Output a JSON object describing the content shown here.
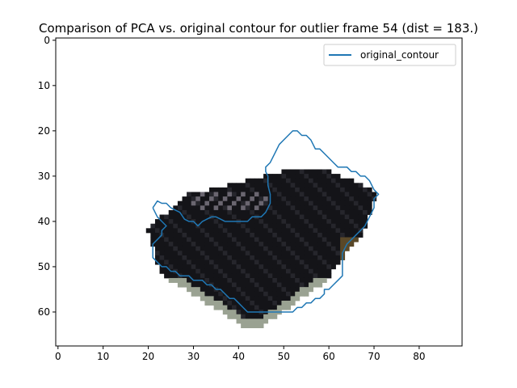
{
  "chart_data": {
    "type": "line",
    "title": "Comparison of PCA vs. original contour for outlier frame 54 (dist = 183.)",
    "xlabel": "",
    "ylabel": "",
    "xlim": [
      -0.5,
      89.5
    ],
    "ylim": [
      67.5,
      -0.5
    ],
    "y_inverted": true,
    "grid": false,
    "legend": {
      "placement": "top-right"
    },
    "x_ticks": [
      0,
      10,
      20,
      30,
      40,
      50,
      60,
      70,
      80
    ],
    "y_ticks": [
      0,
      10,
      20,
      30,
      40,
      50,
      60
    ],
    "background_image": {
      "description_kind": "pixelated image of a dark object",
      "colors": {
        "dark": "#141418",
        "mid": "#26262c",
        "highlight": "#6a6670",
        "rim": "#9aa292",
        "brown": "#5a4828"
      }
    },
    "series": [
      {
        "name": "original_contour",
        "color": "#1f77b4",
        "points": [
          [
            21,
            37
          ],
          [
            22,
            35.5
          ],
          [
            23,
            36
          ],
          [
            24,
            36
          ],
          [
            25,
            37
          ],
          [
            26,
            37.5
          ],
          [
            27,
            38
          ],
          [
            28,
            39.5
          ],
          [
            29,
            40
          ],
          [
            30,
            40
          ],
          [
            31,
            41
          ],
          [
            32,
            40
          ],
          [
            33,
            39.5
          ],
          [
            34,
            39
          ],
          [
            35,
            39
          ],
          [
            36,
            39.5
          ],
          [
            37,
            40
          ],
          [
            38,
            40
          ],
          [
            39,
            40
          ],
          [
            40,
            40
          ],
          [
            41,
            40
          ],
          [
            42,
            40
          ],
          [
            43,
            39
          ],
          [
            44,
            39
          ],
          [
            45,
            39
          ],
          [
            46,
            38
          ],
          [
            47,
            36
          ],
          [
            47,
            34
          ],
          [
            46.5,
            32
          ],
          [
            46.5,
            30
          ],
          [
            46,
            29
          ],
          [
            46,
            28
          ],
          [
            47,
            27
          ],
          [
            48,
            25
          ],
          [
            49,
            23
          ],
          [
            50,
            22
          ],
          [
            51,
            21
          ],
          [
            52,
            20
          ],
          [
            53,
            20
          ],
          [
            54,
            21
          ],
          [
            55,
            21
          ],
          [
            56,
            22
          ],
          [
            57,
            24
          ],
          [
            58,
            24
          ],
          [
            59,
            25
          ],
          [
            60,
            26
          ],
          [
            61,
            27
          ],
          [
            62,
            28
          ],
          [
            63,
            28
          ],
          [
            64,
            28
          ],
          [
            65,
            29
          ],
          [
            66,
            29
          ],
          [
            67,
            30
          ],
          [
            68,
            30
          ],
          [
            69,
            31
          ],
          [
            70,
            33
          ],
          [
            71,
            34
          ],
          [
            70,
            35
          ],
          [
            70,
            37
          ],
          [
            69,
            39
          ],
          [
            68,
            41
          ],
          [
            67,
            42
          ],
          [
            66,
            43
          ],
          [
            65,
            44
          ],
          [
            64,
            45
          ],
          [
            63,
            47
          ],
          [
            63,
            52
          ],
          [
            62,
            53
          ],
          [
            61,
            54
          ],
          [
            60,
            55
          ],
          [
            59,
            55
          ],
          [
            59,
            56
          ],
          [
            58,
            57
          ],
          [
            57,
            57
          ],
          [
            56,
            58
          ],
          [
            55,
            58
          ],
          [
            54,
            59
          ],
          [
            53,
            59
          ],
          [
            52,
            60
          ],
          [
            51,
            60
          ],
          [
            50,
            60
          ],
          [
            49,
            60
          ],
          [
            48,
            60
          ],
          [
            47,
            60
          ],
          [
            46,
            60
          ],
          [
            45,
            60
          ],
          [
            44,
            60
          ],
          [
            43,
            60
          ],
          [
            42,
            60
          ],
          [
            41,
            59
          ],
          [
            40,
            58
          ],
          [
            39,
            57
          ],
          [
            38,
            57
          ],
          [
            37,
            56
          ],
          [
            36,
            55
          ],
          [
            35,
            55
          ],
          [
            34,
            54
          ],
          [
            33,
            54
          ],
          [
            32,
            53
          ],
          [
            31,
            53
          ],
          [
            30,
            53
          ],
          [
            29,
            52
          ],
          [
            28,
            52
          ],
          [
            27,
            52
          ],
          [
            26,
            51
          ],
          [
            25,
            51
          ],
          [
            24,
            50
          ],
          [
            23,
            50
          ],
          [
            22,
            49
          ],
          [
            21,
            48
          ],
          [
            21,
            47
          ],
          [
            21,
            46
          ],
          [
            21,
            45
          ],
          [
            22,
            44
          ],
          [
            23,
            43
          ],
          [
            23,
            42
          ],
          [
            24,
            41
          ],
          [
            23,
            40
          ],
          [
            22,
            39
          ],
          [
            21.5,
            38
          ],
          [
            21,
            37
          ]
        ]
      }
    ]
  }
}
